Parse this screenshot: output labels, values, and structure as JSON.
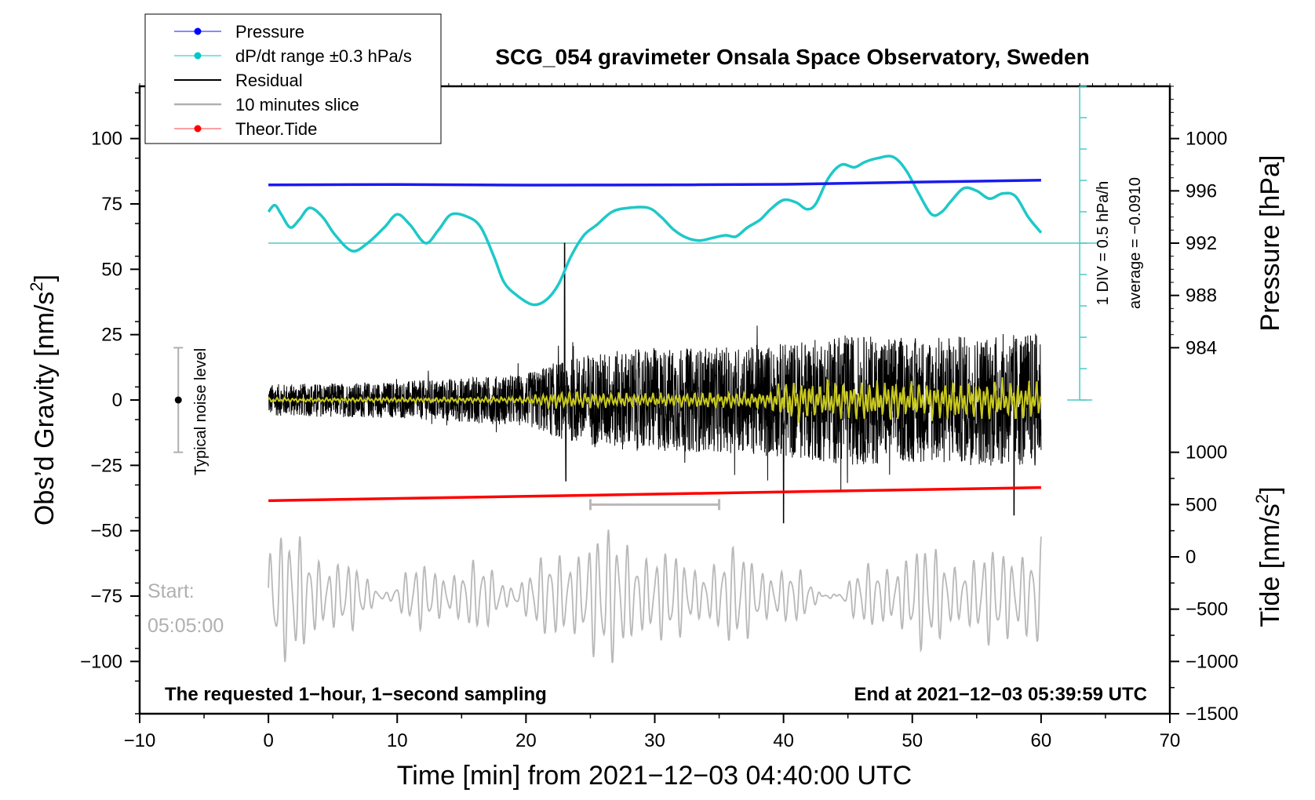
{
  "chart_data": {
    "type": "line",
    "title": "SCG_054 gravimeter Onsala Space Observatory, Sweden",
    "xlabel": "Time [min] from 2021−12−03 04:40:00 UTC",
    "ylabel_left_prefix": "Obs’d Gravity [nm/s",
    "ylabel_left_sup": "2",
    "ylabel_left_suffix": "]",
    "ylabel_right_pressure": "Pressure [hPa]",
    "ylabel_right_tide_prefix": "Tide [nm/s",
    "ylabel_right_tide_sup": "2",
    "ylabel_right_tide_suffix": "]",
    "xlim": [
      -10,
      70
    ],
    "ylim": [
      -120,
      120
    ],
    "x_ticks": [
      -10,
      0,
      10,
      20,
      30,
      40,
      50,
      60,
      70
    ],
    "x_tick_labels": [
      "−10",
      "0",
      "10",
      "20",
      "30",
      "40",
      "50",
      "60",
      "70"
    ],
    "y_ticks": [
      100,
      75,
      50,
      25,
      0,
      -25,
      -50,
      -75,
      -100
    ],
    "y_tick_labels": [
      "100",
      "75",
      "50",
      "25",
      "0",
      "−25",
      "−50",
      "−75",
      "−100"
    ],
    "pressure_axis": {
      "ticks": [
        1000,
        996,
        992,
        988,
        984
      ],
      "tick_labels": [
        "1000",
        "996",
        "992",
        "988",
        "984"
      ],
      "map": {
        "value_a": 1000,
        "gravity_a": 100,
        "value_b": 984,
        "gravity_b": 20
      }
    },
    "tide_axis": {
      "ticks": [
        1000,
        500,
        0,
        -500,
        -1000,
        -1500
      ],
      "tick_labels": [
        "1000",
        "500",
        "0",
        "−500",
        "−1000",
        "−1500"
      ],
      "map": {
        "value_a": 1000,
        "gravity_a": -20,
        "value_b": -1500,
        "gravity_b": -120
      }
    },
    "legend": [
      {
        "label": "Pressure",
        "color": "#0000ff",
        "marker": true
      },
      {
        "label": "dP/dt range ±0.3 hPa/s",
        "color": "#00c8c8",
        "marker": true
      },
      {
        "label": "Residual",
        "color": "#000000",
        "marker": false
      },
      {
        "label": "10 minutes slice",
        "color": "#b0b0b0",
        "marker": false
      },
      {
        "label": "Theor.Tide",
        "color": "#ff0000",
        "marker": true
      }
    ],
    "series": [
      {
        "name": "Pressure",
        "color": "#1a1aee",
        "unit": "gravity",
        "x": [
          0,
          10,
          20,
          30,
          40,
          50,
          60
        ],
        "y": [
          82.3,
          82.4,
          82.2,
          82.3,
          82.5,
          83.3,
          84.1
        ]
      },
      {
        "name": "dP/dt range ±0.3 hPa/s",
        "color": "#1ec8c8",
        "unit": "gravity",
        "x": [
          0,
          0.5,
          1.0,
          1.7,
          2.4,
          3.2,
          4.2,
          5.2,
          6.5,
          7.7,
          9.0,
          10.0,
          11.0,
          12.2,
          13.2,
          14.2,
          15.5,
          16.5,
          17.5,
          18.3,
          19.3,
          20.5,
          21.5,
          22.5,
          23.5,
          24.5,
          25.5,
          26.7,
          28.0,
          29.5,
          30.5,
          31.5,
          32.5,
          33.5,
          34.5,
          35.5,
          36.3,
          37.2,
          38.2,
          39.0,
          40.0,
          41.0,
          41.8,
          42.5,
          43.5,
          44.5,
          45.5,
          46.3,
          47.3,
          48.5,
          49.5,
          50.5,
          51.5,
          52.3,
          53.0,
          54.0,
          55.0,
          56.0,
          57.0,
          58.0,
          59.0,
          60.0
        ],
        "y": [
          72,
          74.5,
          71,
          66,
          69,
          73.5,
          70,
          63,
          57,
          60,
          66,
          71,
          67,
          60,
          65,
          71,
          70,
          66,
          55,
          45,
          40,
          36.5,
          38,
          44,
          55,
          63,
          67,
          72,
          73.5,
          73.5,
          70,
          65,
          62,
          61,
          62,
          63,
          62.5,
          66,
          69,
          73,
          76.5,
          75.5,
          73,
          75,
          85,
          90,
          89,
          91,
          92.5,
          93,
          88,
          79,
          71,
          72,
          76,
          81,
          80,
          77,
          79,
          78,
          70,
          64
        ]
      },
      {
        "name": "Theor.Tide",
        "color": "#ff0000",
        "unit": "gravity",
        "x": [
          0,
          60
        ],
        "y": [
          -38.5,
          -33.5
        ]
      },
      {
        "name": "Residual",
        "color": "#000000",
        "unit": "gravity",
        "samples": "~3600 one-second samples, envelope approx ±7 (0–20 min) growing to ±30 (40–60 min); spike 60 near 23 min",
        "amplitude_profile": {
          "x": [
            0,
            10,
            20,
            22,
            25,
            30,
            35,
            40,
            45,
            50,
            55,
            60
          ],
          "y": [
            6,
            7,
            10,
            14,
            18,
            20,
            20,
            22,
            25,
            24,
            25,
            26
          ]
        }
      },
      {
        "name": "Residual (smoothed)",
        "color": "#c8c81e",
        "unit": "gravity",
        "amplitude_profile": {
          "x": [
            0,
            20,
            22,
            30,
            39,
            40,
            50,
            60
          ],
          "y": [
            1,
            1.5,
            4,
            3,
            4,
            10,
            9,
            9
          ]
        }
      },
      {
        "name": "10 minutes slice",
        "color": "#b8b8b8",
        "unit": "gravity",
        "x_range": [
          0,
          60
        ],
        "center": -75,
        "amplitude": 18,
        "min": -107,
        "max": -45
      }
    ],
    "slice_bracket": {
      "x_start": 25,
      "x_end": 35,
      "y": -40
    },
    "noise_level": {
      "x": -7,
      "center": 0,
      "half_range": 20,
      "label": "Typical noise level"
    },
    "pressure_scale_bar": {
      "x": 63,
      "y_top": 120,
      "y_bottom": 0,
      "label_1": "1 DIV = 0.5 hPa/h",
      "label_2": "average = −0.0910"
    },
    "reference_line": {
      "y": 60
    },
    "start_label_1": "Start:",
    "start_label_2": "05:05:00",
    "bottom_left_note": "The requested 1−hour, 1−second sampling",
    "bottom_right_note": "End at 2021−12−03 05:39:59 UTC"
  }
}
